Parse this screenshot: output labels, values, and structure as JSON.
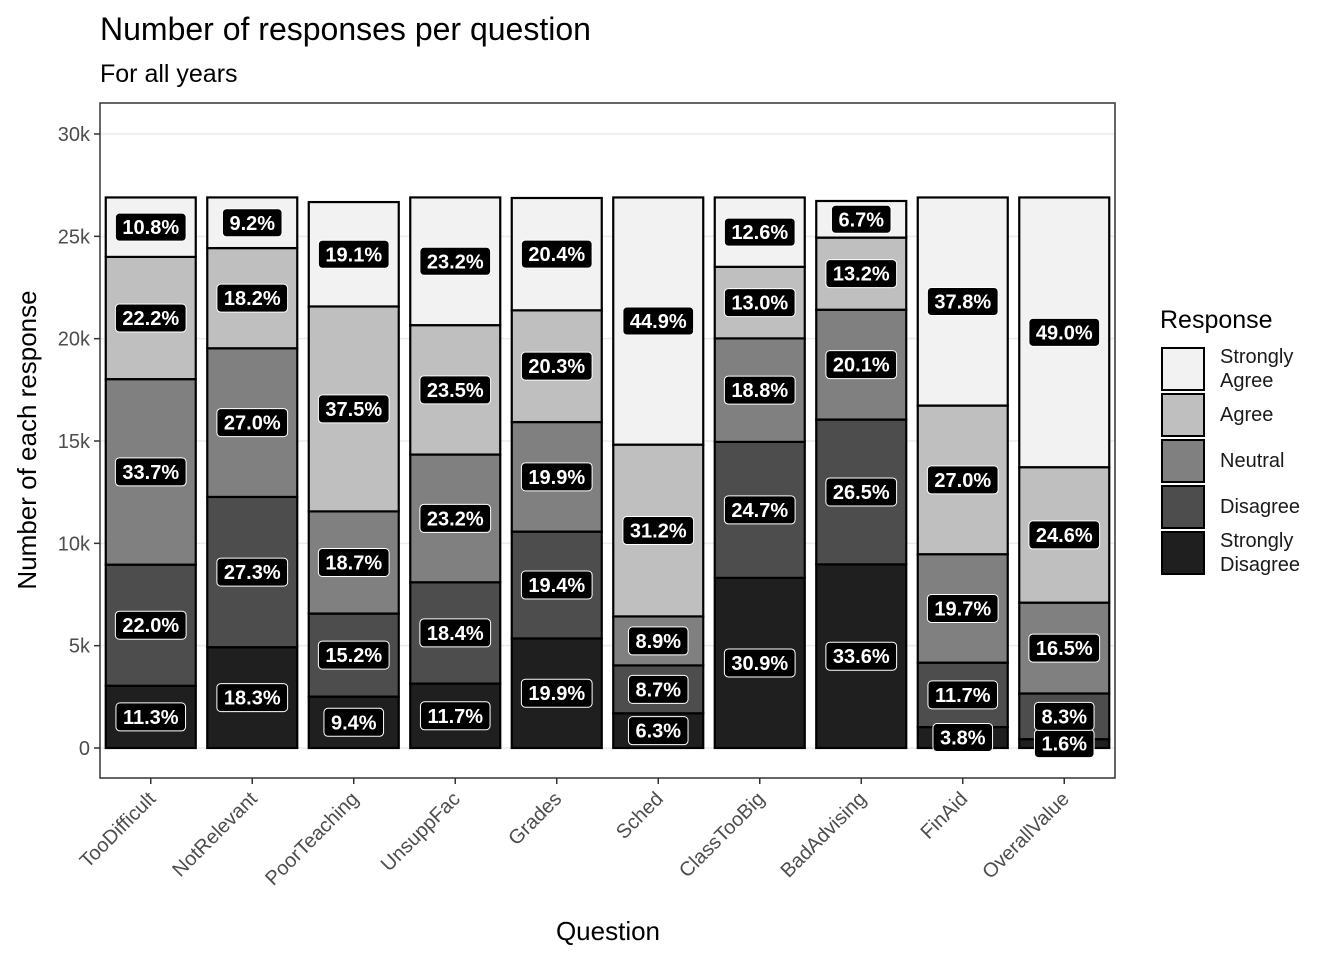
{
  "chart_data": {
    "type": "stacked_bar",
    "title": "Number of responses per question",
    "subtitle": "For all years",
    "x_label": "Question",
    "y_label": "Number of each response",
    "legend_title": "Response",
    "categories": [
      "TooDifficult",
      "NotRelevant",
      "PoorTeaching",
      "UnsuppFac",
      "Grades",
      "Sched",
      "ClassTooBig",
      "BadAdvising",
      "FinAid",
      "OverallValue"
    ],
    "series": [
      {
        "name": "Strongly Agree",
        "color": "#f2f2f2",
        "values": [
          2905,
          2475,
          5100,
          6241,
          5488,
          12078,
          3389,
          1789,
          10168,
          13181
        ],
        "value_labels": [
          "10.8%",
          "9.2%",
          "19.1%",
          "23.2%",
          "20.4%",
          "44.9%",
          "12.6%",
          "6.7%",
          "37.8%",
          "49.0%"
        ]
      },
      {
        "name": "Agree",
        "color": "#bfbfbf",
        "values": [
          5972,
          4896,
          10013,
          6322,
          5461,
          8393,
          3497,
          3524,
          7263,
          6617
        ],
        "value_labels": [
          "22.2%",
          "18.2%",
          "37.5%",
          "23.5%",
          "20.3%",
          "31.2%",
          "13.0%",
          "13.2%",
          "27.0%",
          "24.6%"
        ]
      },
      {
        "name": "Neutral",
        "color": "#808080",
        "values": [
          9065,
          7263,
          4993,
          6241,
          5353,
          2394,
          5057,
          5367,
          5299,
          4439
        ],
        "value_labels": [
          "33.7%",
          "27.0%",
          "18.7%",
          "23.2%",
          "19.9%",
          "8.9%",
          "18.8%",
          "20.1%",
          "19.7%",
          "16.5%"
        ]
      },
      {
        "name": "Disagree",
        "color": "#4d4d4d",
        "values": [
          5918,
          7344,
          4058,
          4950,
          5219,
          2340,
          6644,
          7076,
          3147,
          2233
        ],
        "value_labels": [
          "22.0%",
          "27.3%",
          "15.2%",
          "18.4%",
          "19.4%",
          "8.7%",
          "24.7%",
          "26.5%",
          "11.7%",
          "8.3%"
        ]
      },
      {
        "name": "Strongly Disagree",
        "color": "#1f1f1f",
        "values": [
          3040,
          4923,
          2510,
          3147,
          5353,
          1695,
          8312,
          8971,
          1022,
          430
        ],
        "value_labels": [
          "11.3%",
          "18.3%",
          "9.4%",
          "11.7%",
          "19.9%",
          "6.3%",
          "30.9%",
          "33.6%",
          "3.8%",
          "1.6%"
        ]
      }
    ],
    "ylim": [
      -1466,
      31515
    ],
    "yticks": [
      0,
      {
        "value": 5000,
        "label": "5k"
      },
      {
        "value": 10000,
        "label": "10k"
      },
      {
        "value": 15000,
        "label": "15k"
      },
      {
        "value": 20000,
        "label": "20k"
      },
      {
        "value": 25000,
        "label": "25k"
      },
      {
        "value": 30000,
        "label": "30k"
      }
    ],
    "grid": true,
    "legend_position": "right"
  }
}
